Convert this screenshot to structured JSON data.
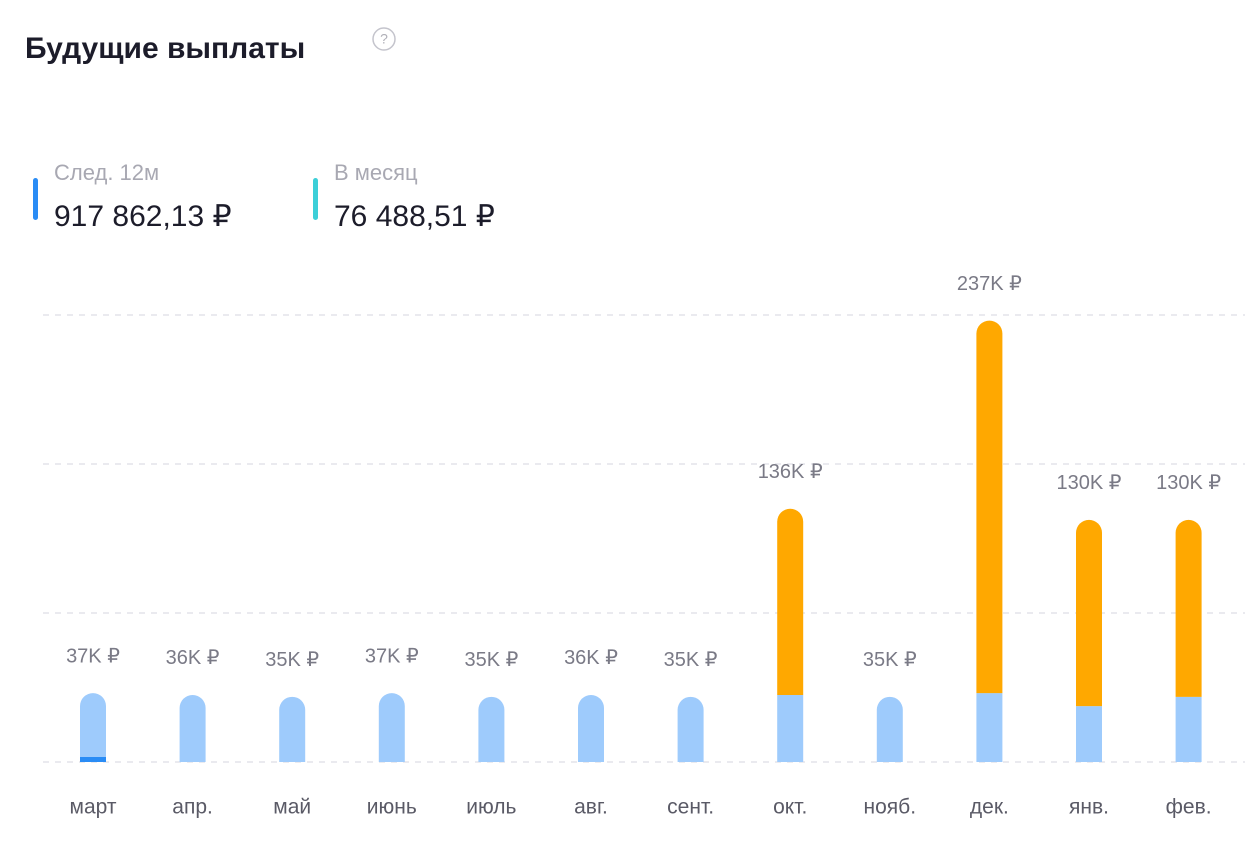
{
  "header": {
    "title": "Будущие выплаты",
    "help": "?"
  },
  "stats": [
    {
      "label": "След. 12м",
      "value": "917 862,13 ₽",
      "color": "#2a8cf5"
    },
    {
      "label": "В месяц",
      "value": "76 488,51 ₽",
      "color": "#3ccfd8"
    }
  ],
  "chart_data": {
    "type": "bar",
    "stacked": true,
    "categories": [
      "март",
      "апр.",
      "май",
      "июнь",
      "июль",
      "авг.",
      "сент.",
      "окт.",
      "нояб.",
      "дек.",
      "янв.",
      "фев."
    ],
    "series": [
      {
        "color": "#2a8cf5",
        "values": [
          2700,
          0,
          0,
          0,
          0,
          0,
          0,
          0,
          0,
          0,
          0,
          0
        ]
      },
      {
        "color": "#9ecbfc",
        "values": [
          34300,
          36000,
          35000,
          37000,
          35000,
          36000,
          35000,
          36000,
          35000,
          37000,
          30000,
          35000
        ]
      },
      {
        "color": "#ffa800",
        "values": [
          0,
          0,
          0,
          0,
          0,
          0,
          0,
          100000,
          0,
          200000,
          100000,
          95000
        ]
      }
    ],
    "totals": {
      "values": [
        37000,
        36000,
        35000,
        37000,
        35000,
        36000,
        35000,
        136000,
        35000,
        237000,
        130000,
        130000
      ],
      "value_labels": [
        "37K ₽",
        "36K ₽",
        "35K ₽",
        "37K ₽",
        "35K ₽",
        "36K ₽",
        "35K ₽",
        "136K ₽",
        "35K ₽",
        "237K ₽",
        "130K ₽",
        "130K ₽"
      ]
    },
    "ylim": [
      0,
      240000
    ],
    "yticks": [
      0,
      80000,
      160000,
      240000
    ],
    "grid": true
  }
}
